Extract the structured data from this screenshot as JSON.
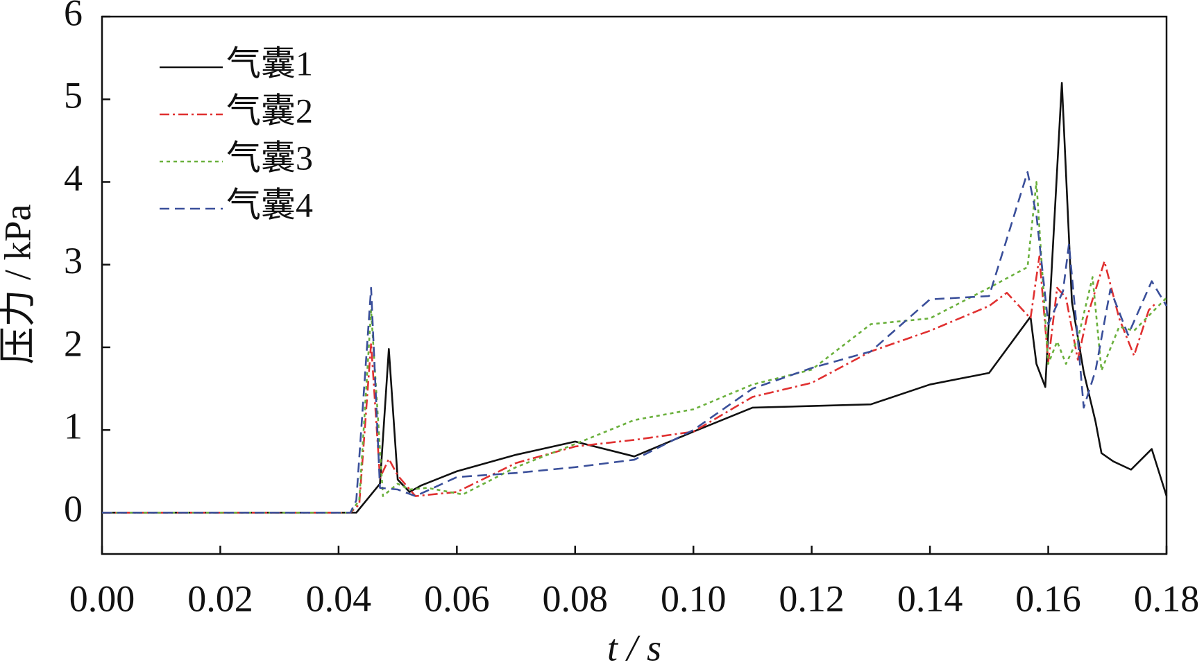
{
  "chart_data": {
    "type": "line",
    "x_label": "t / s",
    "y_label": "压力 / kPa",
    "xlim": [
      0,
      0.18
    ],
    "ylim": [
      -0.5,
      6
    ],
    "xticks": [
      {
        "value": 0,
        "label": "0.00"
      },
      {
        "value": 0.02,
        "label": "0.02"
      },
      {
        "value": 0.04,
        "label": "0.04"
      },
      {
        "value": 0.06,
        "label": "0.06"
      },
      {
        "value": 0.08,
        "label": "0.08"
      },
      {
        "value": 0.1,
        "label": "0.10"
      },
      {
        "value": 0.12,
        "label": "0.12"
      },
      {
        "value": 0.14,
        "label": "0.14"
      },
      {
        "value": 0.16,
        "label": "0.16"
      },
      {
        "value": 0.18,
        "label": "0.18"
      }
    ],
    "yticks": [
      0,
      1,
      2,
      3,
      4,
      5,
      6
    ],
    "legend": "top-left",
    "series": [
      {
        "name": "气囊1",
        "color": "#111111",
        "dash": "solid",
        "x": [
          0,
          0.043,
          0.047,
          0.0485,
          0.05,
          0.052,
          0.054,
          0.06,
          0.07,
          0.08,
          0.09,
          0.1,
          0.11,
          0.12,
          0.13,
          0.14,
          0.15,
          0.157,
          0.158,
          0.1595,
          0.1623,
          0.164,
          0.166,
          0.168,
          0.169,
          0.171,
          0.174,
          0.1775,
          0.18
        ],
        "values": [
          0,
          0,
          0.35,
          1.98,
          0.4,
          0.25,
          0.33,
          0.5,
          0.7,
          0.86,
          0.68,
          0.98,
          1.27,
          1.29,
          1.31,
          1.55,
          1.69,
          2.37,
          1.8,
          1.52,
          5.2,
          2.55,
          1.7,
          1.1,
          0.72,
          0.62,
          0.52,
          0.77,
          0.2
        ]
      },
      {
        "name": "气囊2",
        "color": "#e03030",
        "dash": "dashdot",
        "x": [
          0,
          0.042,
          0.0435,
          0.0455,
          0.047,
          0.0485,
          0.05,
          0.053,
          0.06,
          0.07,
          0.08,
          0.09,
          0.1,
          0.11,
          0.12,
          0.13,
          0.14,
          0.15,
          0.153,
          0.157,
          0.1585,
          0.16,
          0.1615,
          0.163,
          0.165,
          0.1665,
          0.1695,
          0.172,
          0.1745,
          0.177,
          0.178
        ],
        "values": [
          0,
          0,
          0.1,
          2.05,
          0.42,
          0.65,
          0.45,
          0.2,
          0.25,
          0.6,
          0.8,
          0.88,
          0.98,
          1.4,
          1.57,
          1.95,
          2.2,
          2.5,
          2.66,
          2.35,
          3.1,
          1.82,
          2.72,
          2.6,
          1.85,
          2.35,
          3.04,
          2.35,
          1.9,
          2.45,
          2.52
        ]
      },
      {
        "name": "气囊3",
        "color": "#6ab03c",
        "dash": "dot",
        "x": [
          0,
          0.042,
          0.0435,
          0.0455,
          0.0475,
          0.05,
          0.052,
          0.055,
          0.061,
          0.07,
          0.08,
          0.09,
          0.1,
          0.11,
          0.12,
          0.13,
          0.14,
          0.15,
          0.1565,
          0.158,
          0.16,
          0.1615,
          0.163,
          0.165,
          0.1675,
          0.169,
          0.172,
          0.1745,
          0.18
        ],
        "values": [
          0,
          0,
          0.15,
          2.45,
          0.2,
          0.35,
          0.28,
          0.3,
          0.22,
          0.55,
          0.83,
          1.12,
          1.25,
          1.55,
          1.73,
          2.28,
          2.35,
          2.72,
          2.97,
          4.0,
          1.8,
          2.07,
          1.8,
          2.1,
          2.85,
          1.72,
          2.25,
          2.2,
          2.6
        ]
      },
      {
        "name": "气囊4",
        "color": "#3a4f9a",
        "dash": "dash",
        "x": [
          0,
          0.042,
          0.043,
          0.0455,
          0.047,
          0.05,
          0.053,
          0.06,
          0.07,
          0.08,
          0.09,
          0.1,
          0.11,
          0.12,
          0.13,
          0.14,
          0.15,
          0.1565,
          0.158,
          0.16,
          0.1625,
          0.1635,
          0.165,
          0.166,
          0.168,
          0.1705,
          0.1735,
          0.1775,
          0.18
        ],
        "values": [
          0,
          0,
          0.15,
          2.72,
          0.3,
          0.28,
          0.2,
          0.43,
          0.48,
          0.55,
          0.64,
          1.0,
          1.5,
          1.75,
          1.95,
          2.58,
          2.62,
          4.12,
          3.6,
          2.28,
          2.68,
          3.25,
          2.1,
          1.27,
          1.72,
          2.7,
          2.15,
          2.8,
          2.5
        ]
      }
    ]
  }
}
